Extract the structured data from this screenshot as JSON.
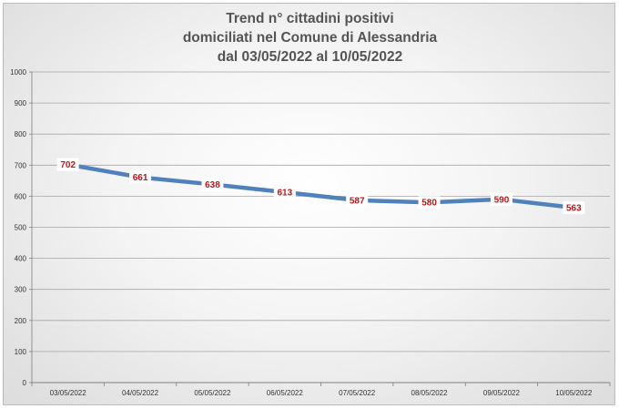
{
  "chart_data": {
    "type": "line",
    "title_lines": [
      "Trend n° cittadini positivi",
      "domiciliati nel Comune di Alessandria",
      "dal 03/05/2022 al 10/05/2022"
    ],
    "categories": [
      "03/05/2022",
      "04/05/2022",
      "05/05/2022",
      "06/05/2022",
      "07/05/2022",
      "08/05/2022",
      "09/05/2022",
      "10/05/2022"
    ],
    "values": [
      702,
      661,
      638,
      613,
      587,
      580,
      590,
      563
    ],
    "ylim": [
      0,
      1000
    ],
    "yticks": [
      0,
      100,
      200,
      300,
      400,
      500,
      600,
      700,
      800,
      900,
      1000
    ],
    "grid": true,
    "line_color": "#4f81bd",
    "label_color": "#c0141a"
  }
}
